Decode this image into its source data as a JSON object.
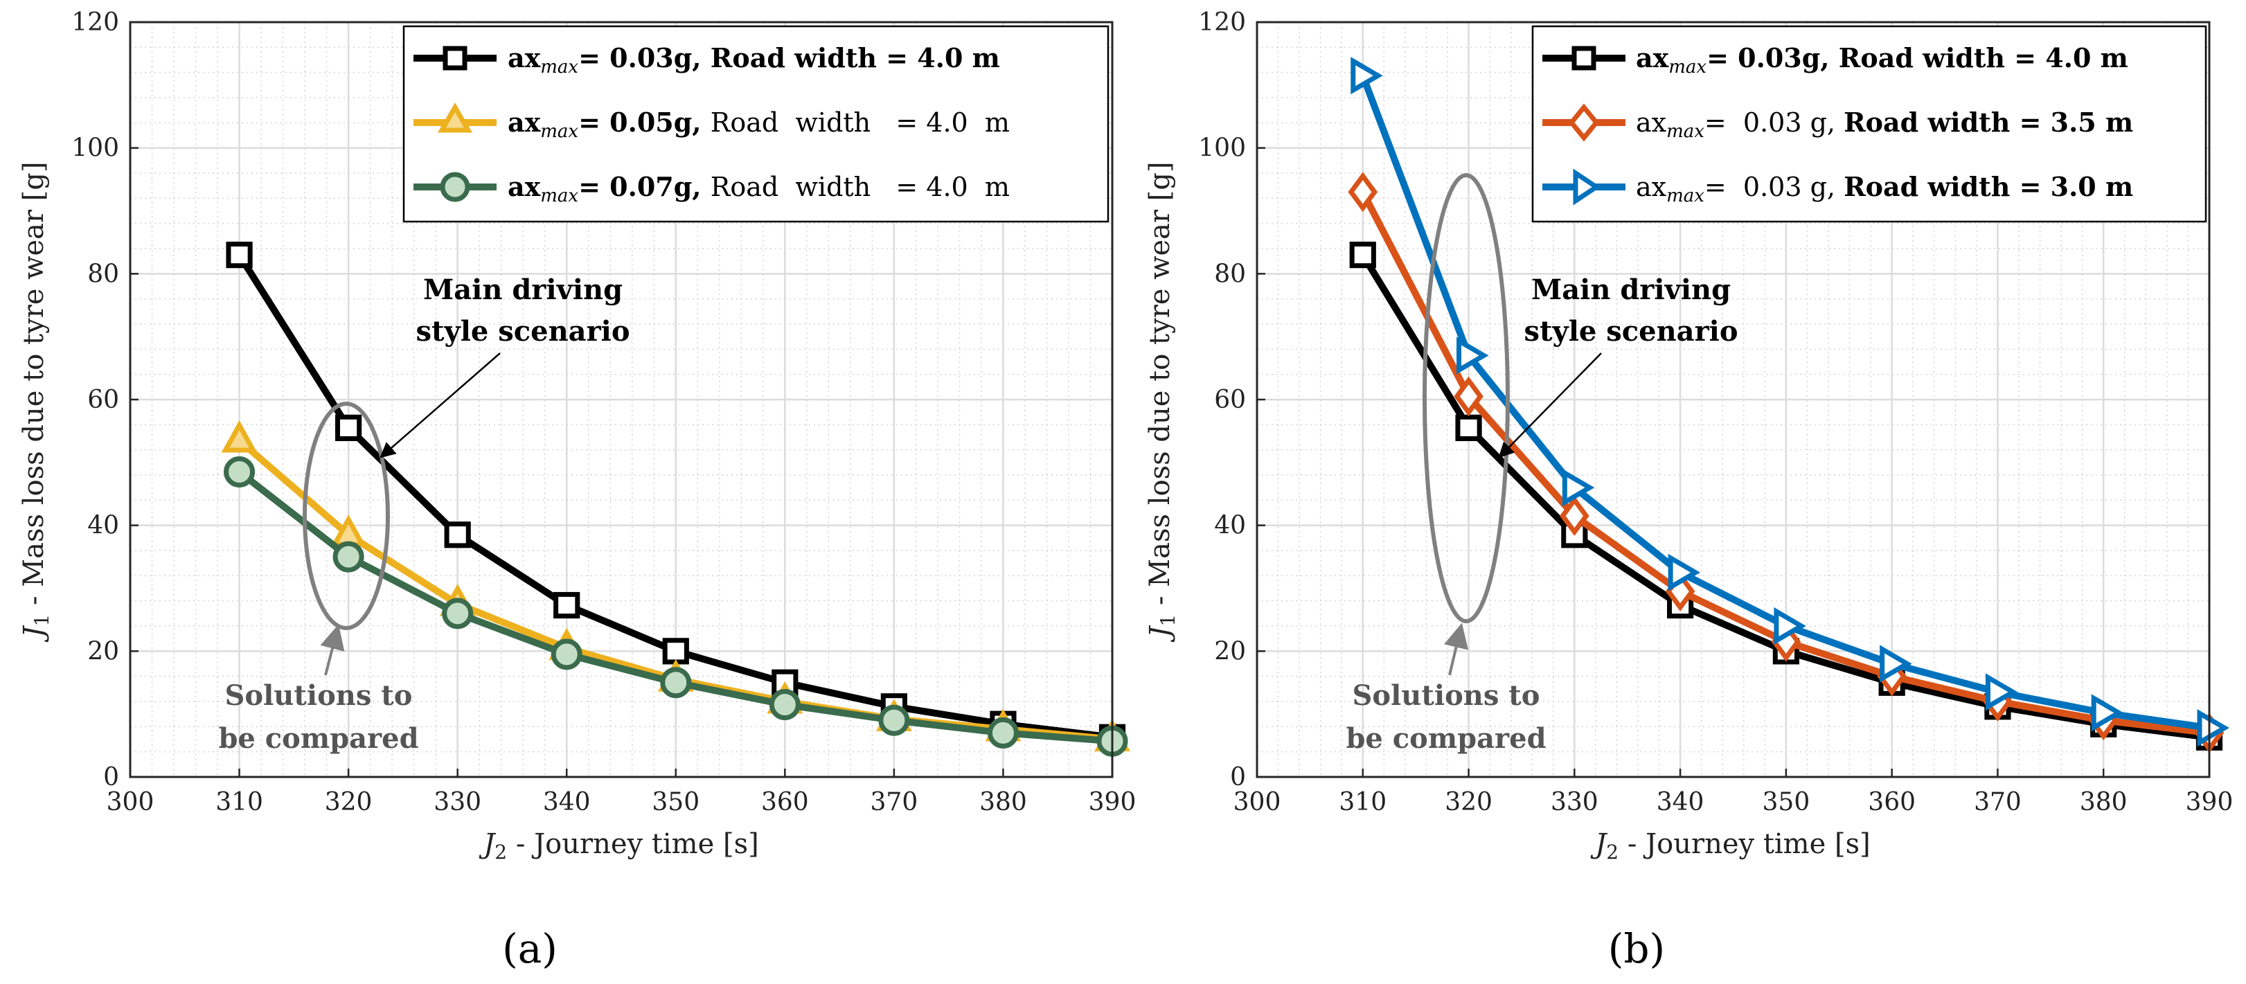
{
  "colors": {
    "black_series": "#000000",
    "yellow_series": "#EDB120",
    "green_series": "#3A6B4C",
    "green_marker_fill": "#C4DEC6",
    "orange_series": "#D95319",
    "blue_series": "#0072BD",
    "ellipse": "#808080",
    "annotation_gray": "#555555"
  },
  "chart_data": [
    {
      "type": "line",
      "caption": "(a)",
      "xlabel_symbol": "J",
      "xlabel_sub": "2",
      "xlabel": " - Journey time [s]",
      "ylabel_symbol": "J",
      "ylabel_sub": "1",
      "ylabel": " - Mass loss due to tyre wear [g]",
      "xlim": [
        300,
        390
      ],
      "ylim": [
        0,
        120
      ],
      "xticks": [
        "300",
        "310",
        "320",
        "330",
        "340",
        "350",
        "360",
        "370",
        "380",
        "390"
      ],
      "yticks": [
        "0",
        "20",
        "40",
        "60",
        "80",
        "100",
        "120"
      ],
      "grid": true,
      "legend_position": "top-right",
      "x": [
        310,
        320,
        330,
        340,
        350,
        360,
        370,
        380,
        390
      ],
      "series": [
        {
          "name": "ax_max = 0.03g, Road width = 4.0 m",
          "legend": {
            "a": "ax",
            "sub": "max",
            "b": "= 0.03g, ",
            "c": "Road width = 4.0 m",
            "c_bold": true
          },
          "color": "#000000",
          "marker": "square",
          "values": [
            83.0,
            55.5,
            38.5,
            27.3,
            20.0,
            15.0,
            11.2,
            8.4,
            6.3
          ]
        },
        {
          "name": "ax_max = 0.05g, Road width = 4.0 m",
          "legend": {
            "a": "ax",
            "sub": "max",
            "b": "= 0.05g, ",
            "c": "Road  width   = 4.0  m",
            "c_bold": false
          },
          "color": "#EDB120",
          "marker": "triangle",
          "values": [
            53.5,
            38.5,
            27.5,
            20.5,
            15.5,
            12.0,
            9.2,
            7.6,
            6.0
          ]
        },
        {
          "name": "ax_max = 0.07g, Road width = 4.0 m",
          "legend": {
            "a": "ax",
            "sub": "max",
            "b": "= 0.07g, ",
            "c": "Road  width   = 4.0  m",
            "c_bold": false
          },
          "color": "#3A6B4C",
          "marker": "circle",
          "values": [
            48.5,
            35.0,
            26.0,
            19.5,
            15.0,
            11.5,
            9.0,
            7.0,
            5.7
          ]
        }
      ],
      "annotations": {
        "main_line1": "Main driving",
        "main_line2": "style scenario",
        "compare_line1": "Solutions to",
        "compare_line2": "be compared"
      }
    },
    {
      "type": "line",
      "caption": "(b)",
      "xlabel_symbol": "J",
      "xlabel_sub": "2",
      "xlabel": " - Journey time [s]",
      "ylabel_symbol": "J",
      "ylabel_sub": "1",
      "ylabel": " - Mass loss due to tyre wear [g]",
      "xlim": [
        300,
        390
      ],
      "ylim": [
        0,
        120
      ],
      "xticks": [
        "300",
        "310",
        "320",
        "330",
        "340",
        "350",
        "360",
        "370",
        "380",
        "390"
      ],
      "yticks": [
        "0",
        "20",
        "40",
        "60",
        "80",
        "100",
        "120"
      ],
      "grid": true,
      "legend_position": "top-right",
      "x": [
        310,
        320,
        330,
        340,
        350,
        360,
        370,
        380,
        390
      ],
      "series": [
        {
          "name": "ax_max = 0.03g, Road width = 4.0 m",
          "legend": {
            "a": "ax",
            "sub": "max",
            "b": "= 0.03g, ",
            "c": "Road width = 4.0 m",
            "c_bold": true,
            "head_bold": true
          },
          "color": "#000000",
          "marker": "square",
          "values": [
            83.0,
            55.5,
            38.5,
            27.3,
            20.0,
            15.0,
            11.2,
            8.4,
            6.3
          ]
        },
        {
          "name": "ax_max = 0.03 g, Road width = 3.5 m",
          "legend": {
            "a": "ax",
            "sub": "max",
            "b": "=  0.03 g, ",
            "c": "Road width = 3.5 m",
            "c_bold": true,
            "head_bold": false
          },
          "color": "#D95319",
          "marker": "diamond",
          "values": [
            93.0,
            60.5,
            41.5,
            29.5,
            21.5,
            16.0,
            12.0,
            9.0,
            7.0
          ]
        },
        {
          "name": "ax_max = 0.03 g, Road width = 3.0 m",
          "legend": {
            "a": "ax",
            "sub": "max",
            "b": "=  0.03 g, ",
            "c": "Road width = 3.0 m",
            "c_bold": true,
            "head_bold": false
          },
          "color": "#0072BD",
          "marker": "triangle-right",
          "values": [
            111.5,
            67.0,
            46.0,
            32.5,
            24.0,
            18.0,
            13.5,
            10.2,
            7.8
          ]
        }
      ],
      "annotations": {
        "main_line1": "Main driving",
        "main_line2": "style scenario",
        "compare_line1": "Solutions to",
        "compare_line2": "be compared"
      }
    }
  ]
}
